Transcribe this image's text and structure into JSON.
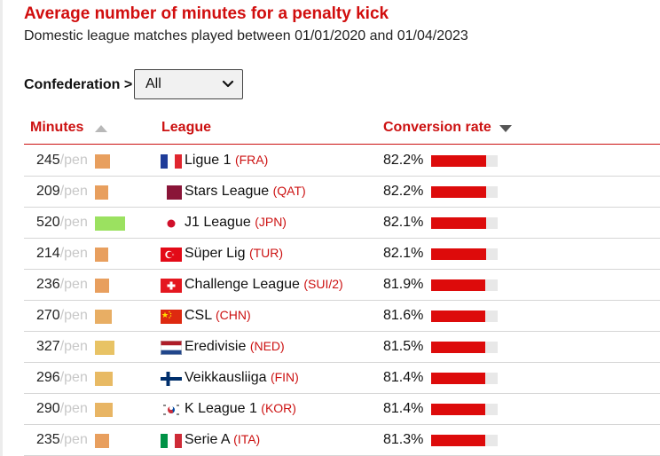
{
  "header": {
    "title": "Average number of minutes for a penalty kick",
    "subtitle": "Domestic league matches played between 01/01/2020 and 01/04/2023"
  },
  "filter": {
    "label": "Confederation >",
    "selected": "All"
  },
  "table": {
    "columns": [
      "Minutes",
      "League",
      "Conversion rate"
    ],
    "unit_suffix": "/pen",
    "rows": [
      {
        "minutes": "245",
        "league": "Ligue 1",
        "code": "(FRA)",
        "rate": "82.2%",
        "rate_value": 82.2,
        "flag": "fr",
        "swatch_color": "#e89f5e"
      },
      {
        "minutes": "209",
        "league": "Stars League",
        "code": "(QAT)",
        "rate": "82.2%",
        "rate_value": 82.2,
        "flag": "qa",
        "swatch_color": "#e89f5e"
      },
      {
        "minutes": "520",
        "league": "J1 League",
        "code": "(JPN)",
        "rate": "82.1%",
        "rate_value": 82.1,
        "flag": "jp",
        "swatch_color": "#9be160"
      },
      {
        "minutes": "214",
        "league": "Süper Lig",
        "code": "(TUR)",
        "rate": "82.1%",
        "rate_value": 82.1,
        "flag": "tr",
        "swatch_color": "#e89f5e"
      },
      {
        "minutes": "236",
        "league": "Challenge League",
        "code": "(SUI/2)",
        "rate": "81.9%",
        "rate_value": 81.9,
        "flag": "ch",
        "swatch_color": "#e89f5e"
      },
      {
        "minutes": "270",
        "league": "CSL",
        "code": "(CHN)",
        "rate": "81.6%",
        "rate_value": 81.6,
        "flag": "cn",
        "swatch_color": "#e8ae64"
      },
      {
        "minutes": "327",
        "league": "Eredivisie",
        "code": "(NED)",
        "rate": "81.5%",
        "rate_value": 81.5,
        "flag": "nl",
        "swatch_color": "#e8c365"
      },
      {
        "minutes": "296",
        "league": "Veikkausliiga",
        "code": "(FIN)",
        "rate": "81.4%",
        "rate_value": 81.4,
        "flag": "fi",
        "swatch_color": "#e8ba64"
      },
      {
        "minutes": "290",
        "league": "K League 1",
        "code": "(KOR)",
        "rate": "81.4%",
        "rate_value": 81.4,
        "flag": "kr",
        "swatch_color": "#e8b564"
      },
      {
        "minutes": "235",
        "league": "Serie A",
        "code": "(ITA)",
        "rate": "81.3%",
        "rate_value": 81.3,
        "flag": "it",
        "swatch_color": "#e89f5e"
      }
    ]
  },
  "colors": {
    "accent": "#cc1111",
    "bar": "#dd0b0b",
    "bar_track": "#e8e8e8"
  }
}
